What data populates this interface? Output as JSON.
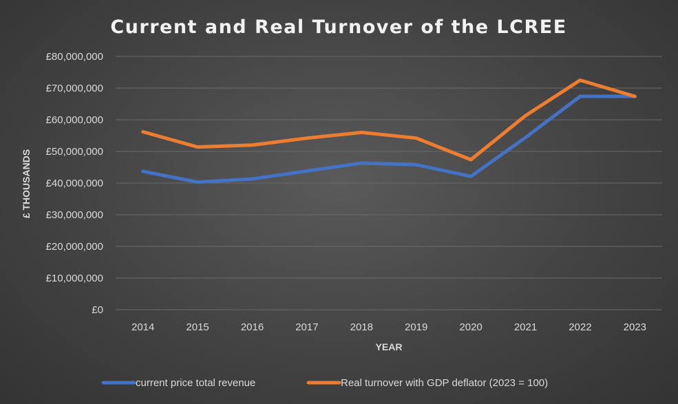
{
  "chart_data": {
    "type": "line",
    "title": "Current and Real Turnover of  the LCREE",
    "xlabel": "YEAR",
    "ylabel": "£ THOUSANDS",
    "categories": [
      "2014",
      "2015",
      "2016",
      "2017",
      "2018",
      "2019",
      "2020",
      "2021",
      "2022",
      "2023"
    ],
    "ylim": [
      0,
      80000000
    ],
    "yticks": [
      0,
      10000000,
      20000000,
      30000000,
      40000000,
      50000000,
      60000000,
      70000000,
      80000000
    ],
    "ytick_labels": [
      "£0",
      "£10,000,000",
      "£20,000,000",
      "£30,000,000",
      "£40,000,000",
      "£50,000,000",
      "£60,000,000",
      "£70,000,000",
      "£80,000,000"
    ],
    "grid": true,
    "legend_position": "bottom",
    "series": [
      {
        "name": "current price total revenue",
        "color": "#4472c4",
        "values": [
          43700000,
          40300000,
          41300000,
          43800000,
          46300000,
          45800000,
          42100000,
          54400000,
          67400000,
          67400000
        ]
      },
      {
        "name": "Real turnover with GDP deflator (2023 = 100)",
        "color": "#ed7d31",
        "values": [
          56200000,
          51400000,
          52000000,
          54200000,
          56000000,
          54200000,
          47400000,
          61300000,
          72500000,
          67400000
        ]
      }
    ]
  }
}
